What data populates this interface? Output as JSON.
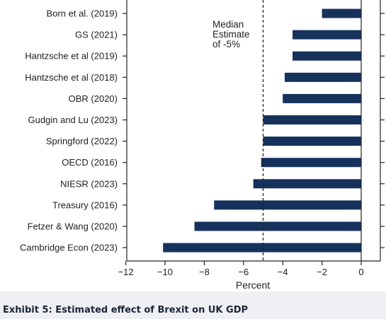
{
  "caption": "Exhibit 5: Estimated effect of Brexit on UK GDP",
  "colors": {
    "bar": "#16325c",
    "axis": "#222222",
    "caption_band": "#eef0f4"
  },
  "chart_data": {
    "type": "bar",
    "orientation": "horizontal",
    "title": "",
    "xlabel": "Percent",
    "ylabel": "",
    "xlim": [
      -12,
      0.5
    ],
    "xticks": [
      -12,
      -10,
      -8,
      -6,
      -4,
      -2,
      0
    ],
    "xtick_labels": [
      "−12",
      "−10",
      "−8",
      "−6",
      "−4",
      "−2",
      "0"
    ],
    "grid": false,
    "categories": [
      "Born et al. (2019)",
      "GS (2021)",
      "Hantzsche et al (2019)",
      "Hantzsche et al (2018)",
      "OBR (2020)",
      "Gudgin and Lu (2023)",
      "Springford (2022)",
      "OECD (2016)",
      "NIESR (2023)",
      "Treasury (2016)",
      "Fetzer & Wang (2020)",
      "Cambridge Econ (2023)"
    ],
    "values": [
      -2.0,
      -3.5,
      -3.5,
      -3.9,
      -4.0,
      -5.0,
      -5.0,
      -5.1,
      -5.5,
      -7.5,
      -8.5,
      -10.1
    ],
    "reference_line": {
      "x": -5,
      "style": "dashed",
      "label": [
        "Median",
        "Estimate",
        "of -5%"
      ]
    }
  }
}
